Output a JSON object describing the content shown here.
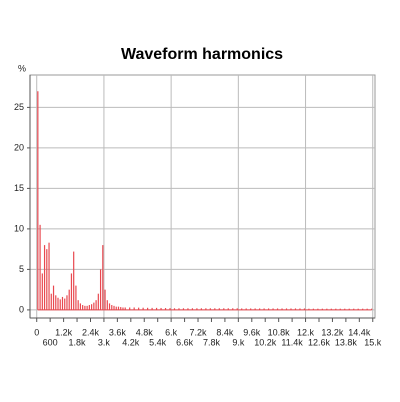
{
  "chart_data": {
    "type": "spectrum",
    "title": "Waveform harmonics",
    "y_label": "%",
    "color": "#e8484f",
    "grid": true,
    "xlim": [
      -300,
      15100
    ],
    "ylim": [
      -1,
      29
    ],
    "yticks": [
      0,
      5,
      10,
      15,
      20,
      25
    ],
    "xticks": [
      0,
      600,
      {
        "value": 1200,
        "label": "1.2k"
      },
      {
        "value": 1800,
        "label": "1.8k"
      },
      {
        "value": 2400,
        "label": "2.4k"
      },
      {
        "value": 3000,
        "label": "3.k"
      },
      {
        "value": 3600,
        "label": "3.6k"
      },
      {
        "value": 4200,
        "label": "4.2k"
      },
      {
        "value": 4800,
        "label": "4.8k"
      },
      {
        "value": 5400,
        "label": "5.4k"
      },
      {
        "value": 6000,
        "label": "6.k"
      },
      {
        "value": 6600,
        "label": "6.6k"
      },
      {
        "value": 7200,
        "label": "7.2k"
      },
      {
        "value": 7800,
        "label": "7.8k"
      },
      {
        "value": 8400,
        "label": "8.4k"
      },
      {
        "value": 9000,
        "label": "9.k"
      },
      {
        "value": 9600,
        "label": "9.6k"
      },
      {
        "value": 10200,
        "label": "10.2k"
      },
      {
        "value": 10800,
        "label": "10.8k"
      },
      {
        "value": 11400,
        "label": "11.4k"
      },
      {
        "value": 12000,
        "label": "12.k"
      },
      {
        "value": 12600,
        "label": "12.6k"
      },
      {
        "value": 13200,
        "label": "13.2k"
      },
      {
        "value": 13800,
        "label": "13.8k"
      },
      {
        "value": 14400,
        "label": "14.4k"
      },
      {
        "value": 15000,
        "label": "15.k"
      }
    ],
    "x": [
      50,
      150,
      250,
      350,
      450,
      550,
      650,
      750,
      850,
      950,
      1050,
      1150,
      1250,
      1350,
      1450,
      1550,
      1650,
      1750,
      1850,
      1950,
      2050,
      2150,
      2250,
      2350,
      2450,
      2550,
      2650,
      2750,
      2850,
      2950,
      3050,
      3150,
      3250,
      3350,
      3450,
      3550,
      3650,
      3750,
      3850,
      3950,
      4150,
      4350,
      4550,
      4750,
      4950,
      5150,
      5350,
      5550,
      5750,
      5950,
      6150,
      6350,
      6550,
      6750,
      6950,
      7150,
      7350,
      7550,
      7750,
      7950,
      8150,
      8350,
      8550,
      8750,
      8950,
      9150,
      9350,
      9550,
      9750,
      9950,
      10150,
      10350,
      10550,
      10750,
      10950,
      11150,
      11350,
      11550,
      11750,
      11950,
      12150,
      12350,
      12550,
      12750,
      12950,
      13150,
      13350,
      13550,
      13750,
      13950,
      14150,
      14350,
      14550,
      14750,
      14950
    ],
    "values": [
      27,
      10.5,
      4.5,
      8,
      7.5,
      8.3,
      2,
      3,
      1.8,
      1.5,
      1.3,
      1.6,
      1.4,
      1.8,
      2.5,
      4.5,
      7.2,
      3,
      1.2,
      0.8,
      0.6,
      0.5,
      0.5,
      0.6,
      0.7,
      0.9,
      1.2,
      2,
      5,
      8,
      2.5,
      1.2,
      0.8,
      0.6,
      0.5,
      0.4,
      0.4,
      0.35,
      0.3,
      0.3,
      0.3,
      0.3,
      0.28,
      0.27,
      0.26,
      0.25,
      0.25,
      0.24,
      0.23,
      0.22,
      0.2,
      0.2,
      0.2,
      0.2,
      0.2,
      0.2,
      0.2,
      0.2,
      0.2,
      0.2,
      0.2,
      0.2,
      0.2,
      0.2,
      0.2,
      0.18,
      0.18,
      0.18,
      0.18,
      0.18,
      0.18,
      0.18,
      0.18,
      0.18,
      0.18,
      0.18,
      0.18,
      0.18,
      0.18,
      0.18,
      0.15,
      0.15,
      0.15,
      0.15,
      0.15,
      0.15,
      0.15,
      0.15,
      0.15,
      0.15,
      0.15,
      0.15,
      0.15,
      0.15,
      0.15
    ]
  }
}
